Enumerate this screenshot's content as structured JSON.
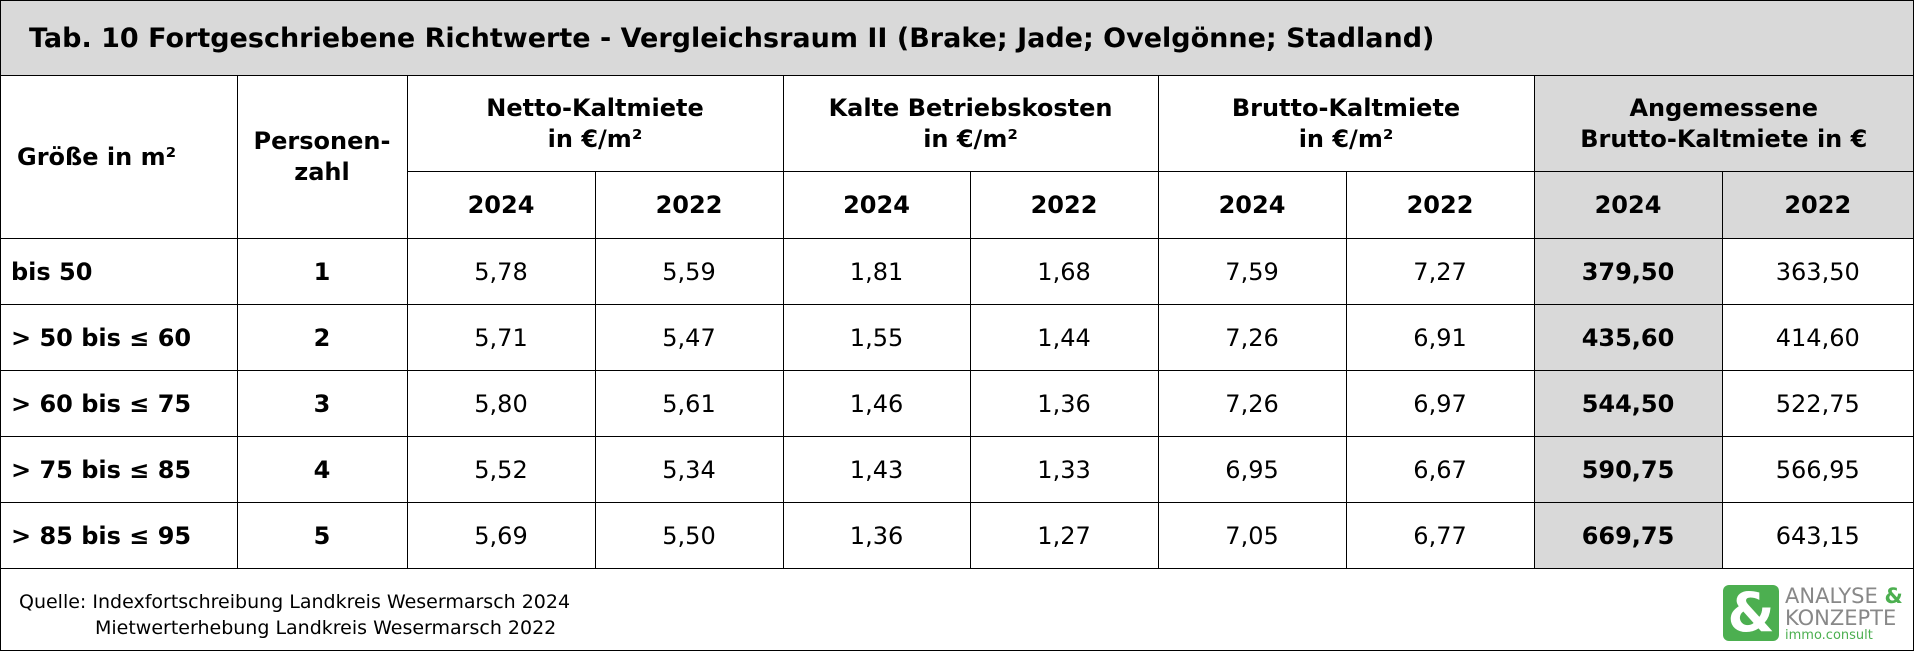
{
  "title": "Tab. 10 Fortgeschriebene Richtwerte - Vergleichsraum II (Brake; Jade; Ovelgönne; Stadland)",
  "header": {
    "size": "Größe in m²",
    "persons": "Personen-\nzahl",
    "groups": [
      "Netto-Kaltmiete\nin €/m²",
      "Kalte Betriebskosten\nin €/m²",
      "Brutto-Kaltmiete\nin €/m²",
      "Angemessene\nBrutto-Kaltmiete in €"
    ],
    "years": [
      "2024",
      "2022",
      "2024",
      "2022",
      "2024",
      "2022",
      "2024",
      "2022"
    ]
  },
  "table": {
    "rows": [
      [
        "bis 50",
        "1",
        "5,78",
        "5,59",
        "1,81",
        "1,68",
        "7,59",
        "7,27",
        "379,50",
        "363,50"
      ],
      [
        "> 50 bis ≤ 60",
        "2",
        "5,71",
        "5,47",
        "1,55",
        "1,44",
        "7,26",
        "6,91",
        "435,60",
        "414,60"
      ],
      [
        "> 60 bis ≤ 75",
        "3",
        "5,80",
        "5,61",
        "1,46",
        "1,36",
        "7,26",
        "6,97",
        "544,50",
        "522,75"
      ],
      [
        "> 75 bis ≤ 85",
        "4",
        "5,52",
        "5,34",
        "1,43",
        "1,33",
        "6,95",
        "6,67",
        "590,75",
        "566,95"
      ],
      [
        "> 85 bis ≤ 95",
        "5",
        "5,69",
        "5,50",
        "1,36",
        "1,27",
        "7,05",
        "6,77",
        "669,75",
        "643,15"
      ]
    ]
  },
  "footer": {
    "label": "Quelle:",
    "lines": [
      "Indexfortschreibung Landkreis Wesermarsch 2024",
      "Mietwerterhebung Landkreis Wesermarsch 2022"
    ]
  },
  "logo": {
    "amp": "&",
    "word1": "ANALYSE",
    "word2": "KONZEPTE",
    "sub": "immo.consult"
  }
}
